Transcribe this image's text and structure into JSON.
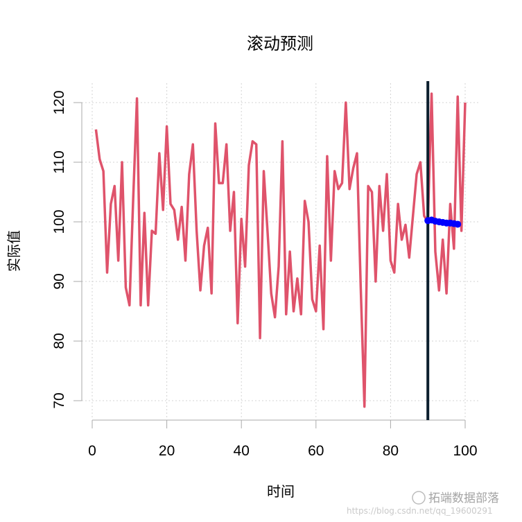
{
  "chart_data": {
    "type": "line",
    "title": "滚动预测",
    "xlabel": "时间",
    "ylabel": "实际值",
    "xlim": [
      0,
      100
    ],
    "ylim": [
      70,
      120
    ],
    "x_ticks": [
      0,
      20,
      40,
      60,
      80,
      100
    ],
    "y_ticks": [
      70,
      80,
      90,
      100,
      110,
      120
    ],
    "grid": true,
    "vline_x": 90,
    "series": [
      {
        "color": "#DF536B",
        "x": [
          1,
          2,
          3,
          4,
          5,
          6,
          7,
          8,
          9,
          10,
          11,
          12,
          13,
          14,
          15,
          16,
          17,
          18,
          19,
          20,
          21,
          22,
          23,
          24,
          25,
          26,
          27,
          28,
          29,
          30,
          31,
          32,
          33,
          34,
          35,
          36,
          37,
          38,
          39,
          40,
          41,
          42,
          43,
          44,
          45,
          46,
          47,
          48,
          49,
          50,
          51,
          52,
          53,
          54,
          55,
          56,
          57,
          58,
          59,
          60,
          61,
          62,
          63,
          64,
          65,
          66,
          67,
          68,
          69,
          70,
          71,
          72,
          73,
          74,
          75,
          76,
          77,
          78,
          79,
          80,
          81,
          82,
          83,
          84,
          85,
          86,
          87,
          88,
          89,
          90,
          91,
          92,
          93,
          94,
          95,
          96,
          97,
          98,
          99,
          100
        ],
        "values": [
          115.5,
          110.5,
          108.5,
          91.5,
          103,
          106,
          93.5,
          110,
          89,
          86,
          104,
          120.7,
          86,
          101.5,
          86,
          98.5,
          98,
          111.5,
          102,
          116,
          103,
          102,
          97,
          102.5,
          93.5,
          108,
          113,
          98.5,
          88.5,
          96,
          99,
          88,
          116.5,
          106.5,
          106.5,
          113,
          98.5,
          105,
          83,
          100.5,
          92.5,
          109.5,
          113.5,
          113,
          80.5,
          108.5,
          98.5,
          88,
          84,
          92.5,
          113.5,
          84.5,
          95,
          85,
          90.5,
          84.5,
          103.5,
          100,
          87,
          85,
          96,
          82,
          111,
          93.5,
          108.5,
          105.5,
          106.5,
          120,
          105.5,
          109,
          111.5,
          89,
          69,
          106,
          105,
          90,
          106,
          98.5,
          108,
          93.5,
          91.5,
          103,
          97,
          99.5,
          94,
          101,
          108,
          110,
          101,
          100,
          121.5,
          95,
          88.5,
          97,
          88,
          103,
          95.5,
          121,
          98.5,
          120
        ]
      },
      {
        "color": "#0000FF",
        "x": [
          90,
          91,
          92,
          93,
          94,
          95,
          96,
          97,
          98
        ],
        "values": [
          100.2,
          100.3,
          100.1,
          100,
          99.9,
          99.8,
          99.8,
          99.7,
          99.6
        ]
      }
    ]
  }
}
